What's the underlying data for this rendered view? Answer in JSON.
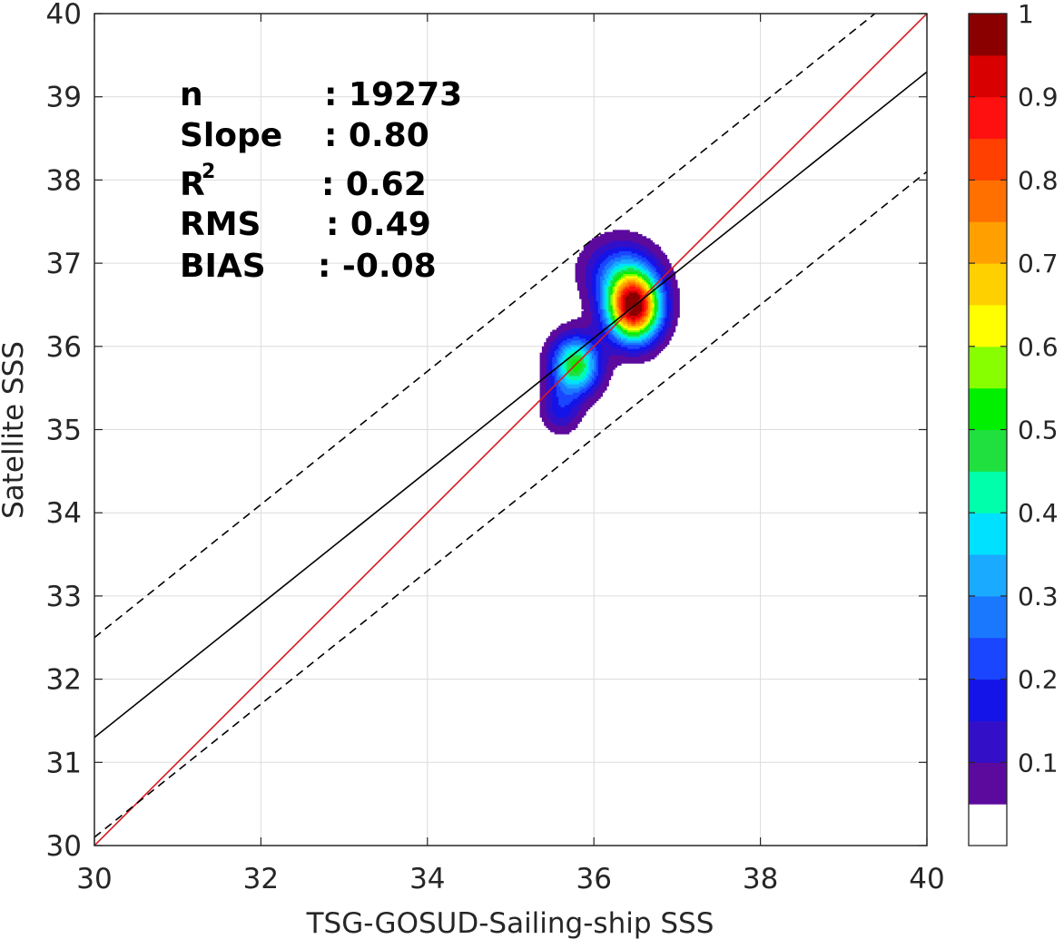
{
  "chart_data": {
    "type": "contour",
    "xlabel": "TSG-GOSUD-Sailing-ship SSS",
    "ylabel": "Satellite SSS",
    "xlim": [
      30,
      40
    ],
    "ylim": [
      30,
      40
    ],
    "x_ticks": [
      "30",
      "32",
      "34",
      "36",
      "38",
      "40"
    ],
    "y_ticks": [
      "30",
      "31",
      "32",
      "33",
      "34",
      "35",
      "36",
      "37",
      "38",
      "39",
      "40"
    ],
    "grid": true,
    "stats": [
      {
        "label": "n",
        "value": ": 19273"
      },
      {
        "label": "Slope",
        "value": ": 0.80"
      },
      {
        "label": "R",
        "label_sup": "2",
        "value": ": 0.62"
      },
      {
        "label": "RMS",
        "value": ": 0.49"
      },
      {
        "label": "BIAS",
        "value": ": -0.08"
      }
    ],
    "lines": [
      {
        "role": "one-to-one",
        "style": "solid",
        "color": "#d71920",
        "slope": 1.0,
        "intercept": 0.0
      },
      {
        "role": "regression",
        "style": "solid",
        "color": "#000000",
        "slope": 0.8,
        "intercept": 7.3
      },
      {
        "role": "regression-plus-spread",
        "style": "dashed",
        "color": "#000000",
        "slope": 0.8,
        "intercept": 8.5
      },
      {
        "role": "regression-minus-spread",
        "style": "dashed",
        "color": "#000000",
        "slope": 0.8,
        "intercept": 6.1
      }
    ],
    "density": {
      "peaks": [
        {
          "x": 36.48,
          "y": 36.48,
          "amp": 1.0,
          "sx": 0.22,
          "sy": 0.28
        },
        {
          "x": 35.78,
          "y": 35.78,
          "amp": 0.52,
          "sx": 0.2,
          "sy": 0.24
        },
        {
          "x": 36.3,
          "y": 36.9,
          "amp": 0.22,
          "sx": 0.3,
          "sy": 0.28
        },
        {
          "x": 35.6,
          "y": 35.25,
          "amp": 0.16,
          "sx": 0.16,
          "sy": 0.2
        }
      ],
      "cutoff": 0.05
    },
    "colorbar": {
      "ticks": [
        "0.1",
        "0.2",
        "0.3",
        "0.4",
        "0.5",
        "0.6",
        "0.7",
        "0.8",
        "0.9",
        "1"
      ],
      "levels": [
        0.0,
        0.05,
        0.1,
        0.15,
        0.2,
        0.25,
        0.3,
        0.35,
        0.4,
        0.45,
        0.5,
        0.55,
        0.6,
        0.65,
        0.7,
        0.75,
        0.8,
        0.85,
        0.9,
        0.95,
        1.0
      ],
      "colors": [
        "#ffffff",
        "#5c0a9e",
        "#3310c8",
        "#1414e8",
        "#1a46ff",
        "#1a78ff",
        "#1aaaff",
        "#00e0ff",
        "#00ffaa",
        "#20e040",
        "#00f000",
        "#88ff00",
        "#ffff00",
        "#ffd000",
        "#ffa000",
        "#ff7000",
        "#ff4000",
        "#ff1010",
        "#d80000",
        "#8a0000"
      ]
    }
  }
}
